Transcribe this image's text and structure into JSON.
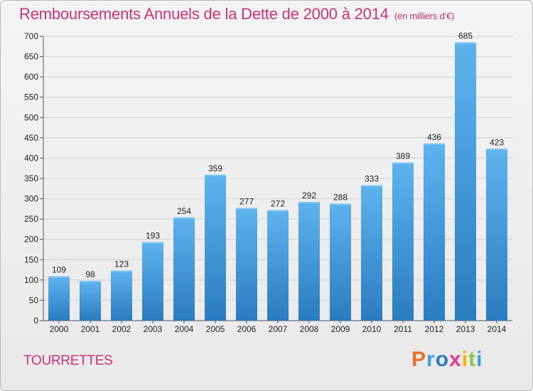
{
  "header": {
    "title": "Remboursements Annuels de la Dette de 2000 à 2014",
    "subtitle": "(en milliers d'€)"
  },
  "footer": {
    "town": "TOURRETTES",
    "logo": "Proxiti",
    "logo_colors": [
      "#e8702a",
      "#3aa0d8",
      "#2e7bbf",
      "#e23c8f",
      "#f2b400",
      "#8cc63f",
      "#3aa0d8"
    ]
  },
  "chart_data": {
    "type": "bar",
    "title": "Remboursements Annuels de la Dette de 2000 à 2014",
    "subtitle": "(en milliers d'€)",
    "xlabel": "",
    "ylabel": "",
    "ylim": [
      0,
      700
    ],
    "yticks": [
      0,
      50,
      100,
      150,
      200,
      250,
      300,
      350,
      400,
      450,
      500,
      550,
      600,
      650,
      700
    ],
    "categories": [
      "2000",
      "2001",
      "2002",
      "2003",
      "2004",
      "2005",
      "2006",
      "2007",
      "2008",
      "2009",
      "2010",
      "2011",
      "2012",
      "2013",
      "2014"
    ],
    "values": [
      109,
      98,
      123,
      193,
      254,
      359,
      277,
      272,
      292,
      288,
      333,
      389,
      436,
      685,
      423
    ],
    "bar_color": "#3f94d8",
    "grid": true
  }
}
